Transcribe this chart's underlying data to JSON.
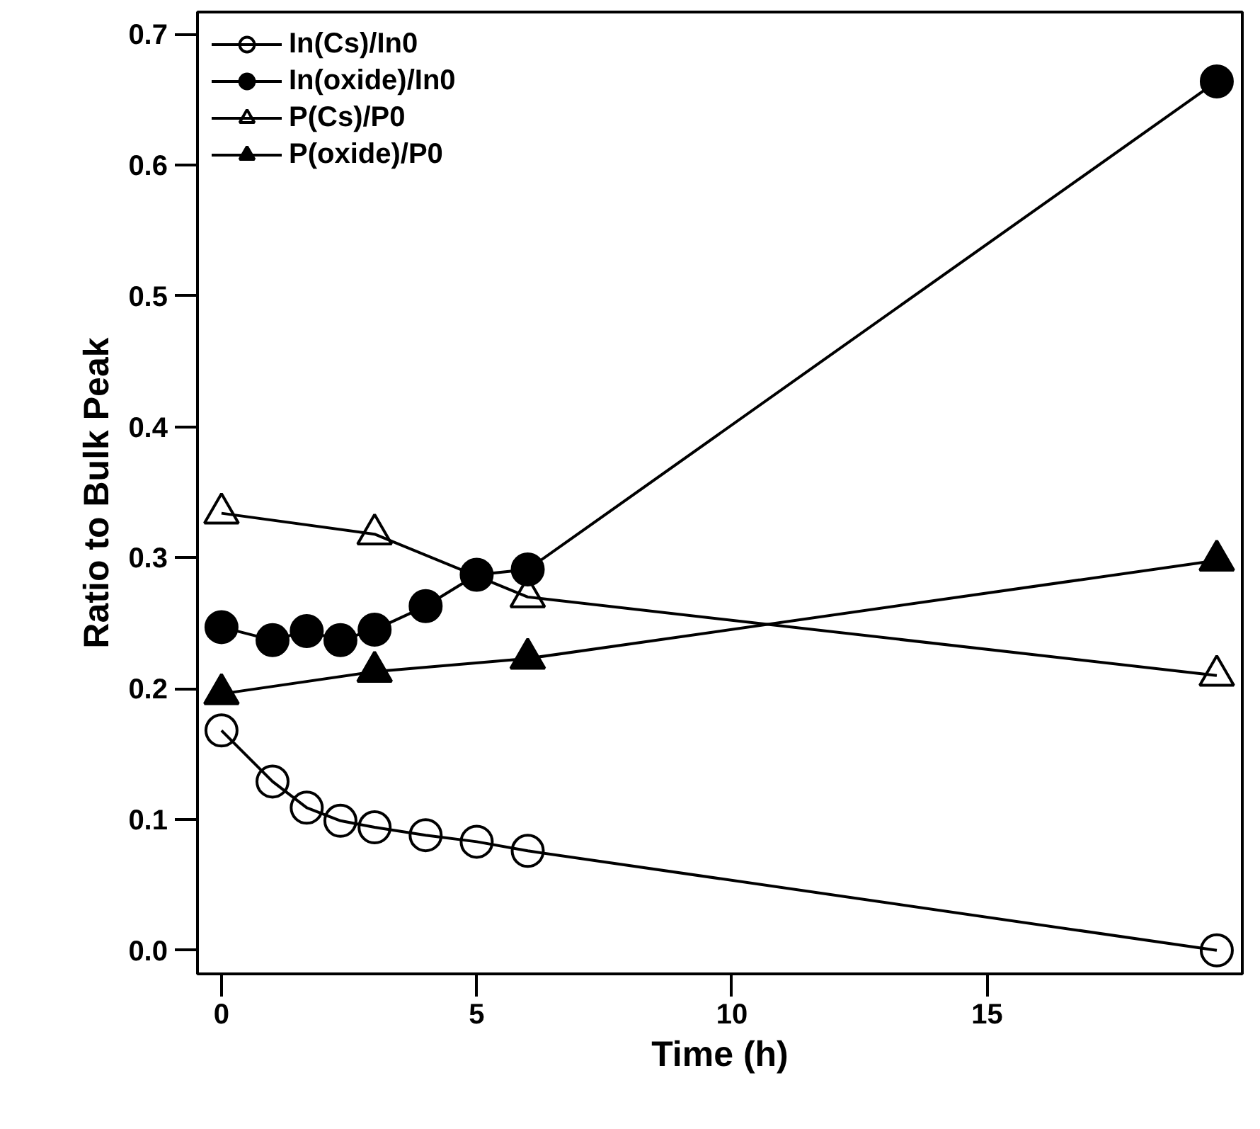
{
  "chart_data": {
    "type": "line",
    "xlabel": "Time (h)",
    "ylabel": "Ratio to Bulk Peak",
    "xlim": [
      -0.47,
      20.0
    ],
    "ylim": [
      -0.018,
      0.717
    ],
    "xticks": [
      0,
      5,
      10,
      15
    ],
    "yticks": [
      {
        "value": 0.0,
        "label": "0.0"
      },
      0.1,
      0.2,
      0.3,
      0.4,
      0.5,
      0.6,
      0.7
    ],
    "grid": false,
    "legend": "top left",
    "line_style": "solid",
    "series": [
      {
        "name": "In(Cs)/In0",
        "color": "#000000",
        "marker": "circle_open",
        "x": [
          0,
          1,
          1.67,
          2.33,
          3,
          4,
          5,
          6,
          19.5
        ],
        "values": [
          0.168,
          0.129,
          0.109,
          0.099,
          0.094,
          0.088,
          0.083,
          0.076,
          0.0
        ]
      },
      {
        "name": "In(oxide)/In0",
        "color": "#000000",
        "marker": "circle",
        "x": [
          0,
          1,
          1.67,
          2.33,
          3,
          4,
          5,
          6,
          19.5
        ],
        "values": [
          0.247,
          0.237,
          0.244,
          0.237,
          0.245,
          0.263,
          0.287,
          0.291,
          0.664
        ]
      },
      {
        "name": "P(Cs)/P0",
        "color": "#000000",
        "marker": "triangle_open",
        "x": [
          0,
          3,
          6,
          19.5
        ],
        "values": [
          0.334,
          0.318,
          0.27,
          0.21
        ]
      },
      {
        "name": "P(oxide)/P0",
        "color": "#000000",
        "marker": "triangle",
        "x": [
          0,
          3,
          6,
          19.5
        ],
        "values": [
          0.196,
          0.213,
          0.223,
          0.298
        ]
      }
    ]
  }
}
